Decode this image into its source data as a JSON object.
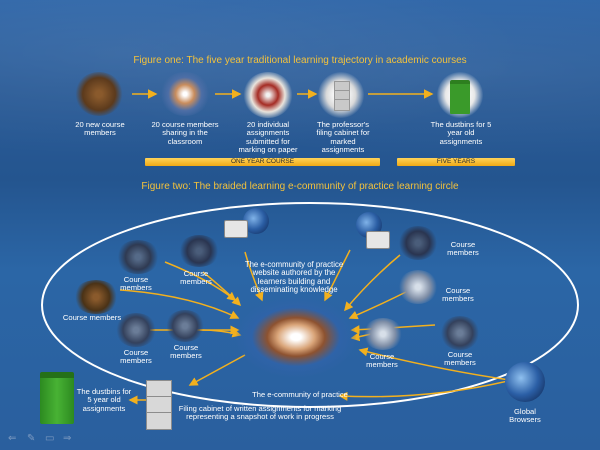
{
  "figure_one": {
    "title": "Figure one: The five year traditional learning trajectory in academic courses",
    "steps": [
      {
        "label": "20 new course members"
      },
      {
        "label": "20 course members sharing in the classroom"
      },
      {
        "label": "20 individual assignments submitted for marking on paper"
      },
      {
        "label": "The professor's filing cabinet for marked assignments"
      },
      {
        "label": "The dustbins for 5 year old assignments"
      }
    ],
    "bar_one_year": "ONE YEAR COURSE",
    "bar_five_years": "FIVE YEARS"
  },
  "figure_two": {
    "title": "Figure two: The braided learning e-community of practice learning circle",
    "website_text": "The e-community of practice website authored by the learners building and disseminating knowledge",
    "community_label": "The e-community of practice",
    "course_members_label": "Course members",
    "dustbin_label": "The dustbins for 5 year old assignments",
    "cabinet_label": "Filing cabinet of written assignments for marking representing a snapshot of work in progress",
    "global_label": "Global Browsers"
  },
  "colors": {
    "accent_title": "#f3c23c",
    "arrow": "#f2b01e",
    "ellipse": "#ffffff",
    "background": "#2a5f9e"
  },
  "icons": [
    "crowd-photo",
    "hands-photo",
    "books-photo",
    "filing-cabinet-icon",
    "dustbin-icon",
    "globe-icon",
    "laptop-icon",
    "arrow-icon"
  ]
}
